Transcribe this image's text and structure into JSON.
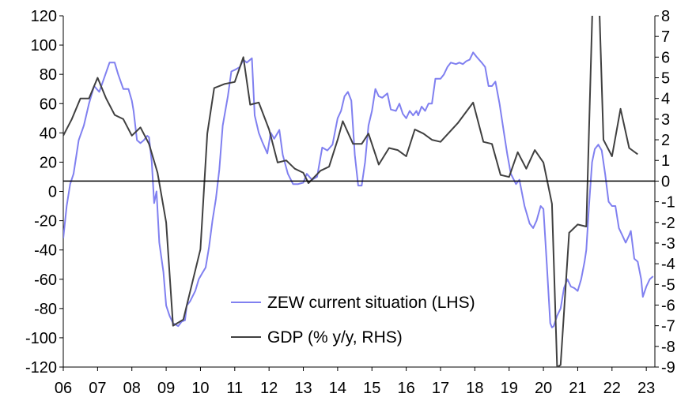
{
  "chart_data": {
    "type": "line",
    "title": "",
    "xlabel": "",
    "y_left": {
      "label": "",
      "range": [
        -120,
        120
      ],
      "ticks": [
        120,
        100,
        80,
        60,
        40,
        20,
        0,
        -20,
        -40,
        -60,
        -80,
        -100,
        -120
      ]
    },
    "y_right": {
      "label": "",
      "range": [
        -9,
        8
      ],
      "ticks": [
        8,
        7,
        6,
        5,
        4,
        3,
        2,
        1,
        0,
        -1,
        -2,
        -3,
        -4,
        -5,
        -6,
        -7,
        -8,
        -9
      ]
    },
    "x_range": [
      2006.0,
      2023.25
    ],
    "x_ticks": [
      {
        "value": 2006,
        "label": "06"
      },
      {
        "value": 2007,
        "label": "07"
      },
      {
        "value": 2008,
        "label": "08"
      },
      {
        "value": 2009,
        "label": "09"
      },
      {
        "value": 2010,
        "label": "10"
      },
      {
        "value": 2011,
        "label": "11"
      },
      {
        "value": 2012,
        "label": "12"
      },
      {
        "value": 2013,
        "label": "13"
      },
      {
        "value": 2014,
        "label": "14"
      },
      {
        "value": 2015,
        "label": "15"
      },
      {
        "value": 2016,
        "label": "16"
      },
      {
        "value": 2017,
        "label": "17"
      },
      {
        "value": 2018,
        "label": "18"
      },
      {
        "value": 2019,
        "label": "19"
      },
      {
        "value": 2020,
        "label": "20"
      },
      {
        "value": 2021,
        "label": "21"
      },
      {
        "value": 2022,
        "label": "22"
      },
      {
        "value": 2023,
        "label": "23"
      }
    ],
    "zero_line": "right-axis zero",
    "grid": false,
    "legend": {
      "placement": "bottom-center"
    },
    "series": [
      {
        "name": "ZEW current situation (LHS)",
        "axis": "left",
        "color": "#8080f0",
        "points": [
          [
            2006.0,
            -32
          ],
          [
            2006.1,
            -10
          ],
          [
            2006.2,
            5
          ],
          [
            2006.3,
            12
          ],
          [
            2006.45,
            35
          ],
          [
            2006.6,
            45
          ],
          [
            2006.75,
            60
          ],
          [
            2006.9,
            72
          ],
          [
            2007.05,
            68
          ],
          [
            2007.2,
            78
          ],
          [
            2007.35,
            88
          ],
          [
            2007.5,
            88
          ],
          [
            2007.6,
            80
          ],
          [
            2007.75,
            70
          ],
          [
            2007.9,
            70
          ],
          [
            2008.0,
            62
          ],
          [
            2008.05,
            55
          ],
          [
            2008.15,
            35
          ],
          [
            2008.25,
            33
          ],
          [
            2008.35,
            35
          ],
          [
            2008.45,
            38
          ],
          [
            2008.5,
            37
          ],
          [
            2008.58,
            20
          ],
          [
            2008.65,
            -8
          ],
          [
            2008.72,
            0
          ],
          [
            2008.8,
            -35
          ],
          [
            2008.92,
            -55
          ],
          [
            2009.0,
            -78
          ],
          [
            2009.1,
            -85
          ],
          [
            2009.2,
            -90
          ],
          [
            2009.35,
            -92
          ],
          [
            2009.45,
            -89
          ],
          [
            2009.55,
            -88
          ],
          [
            2009.6,
            -78
          ],
          [
            2009.7,
            -75
          ],
          [
            2009.85,
            -68
          ],
          [
            2009.95,
            -60
          ],
          [
            2010.05,
            -56
          ],
          [
            2010.15,
            -52
          ],
          [
            2010.25,
            -38
          ],
          [
            2010.35,
            -20
          ],
          [
            2010.45,
            -5
          ],
          [
            2010.55,
            15
          ],
          [
            2010.65,
            45
          ],
          [
            2010.8,
            65
          ],
          [
            2010.9,
            82
          ],
          [
            2011.0,
            83
          ],
          [
            2011.15,
            85
          ],
          [
            2011.25,
            90
          ],
          [
            2011.35,
            88
          ],
          [
            2011.5,
            91
          ],
          [
            2011.58,
            52
          ],
          [
            2011.7,
            40
          ],
          [
            2011.8,
            34
          ],
          [
            2011.95,
            26
          ],
          [
            2012.05,
            40
          ],
          [
            2012.15,
            36
          ],
          [
            2012.3,
            42
          ],
          [
            2012.4,
            25
          ],
          [
            2012.55,
            12
          ],
          [
            2012.7,
            5
          ],
          [
            2012.85,
            5
          ],
          [
            2013.0,
            6
          ],
          [
            2013.1,
            12
          ],
          [
            2013.25,
            8
          ],
          [
            2013.4,
            10
          ],
          [
            2013.55,
            30
          ],
          [
            2013.7,
            28
          ],
          [
            2013.85,
            32
          ],
          [
            2014.0,
            50
          ],
          [
            2014.1,
            55
          ],
          [
            2014.2,
            65
          ],
          [
            2014.3,
            68
          ],
          [
            2014.4,
            62
          ],
          [
            2014.5,
            25
          ],
          [
            2014.6,
            4
          ],
          [
            2014.7,
            4
          ],
          [
            2014.8,
            20
          ],
          [
            2014.9,
            45
          ],
          [
            2015.0,
            55
          ],
          [
            2015.1,
            70
          ],
          [
            2015.2,
            65
          ],
          [
            2015.3,
            64
          ],
          [
            2015.45,
            67
          ],
          [
            2015.55,
            56
          ],
          [
            2015.7,
            55
          ],
          [
            2015.8,
            60
          ],
          [
            2015.9,
            53
          ],
          [
            2016.0,
            50
          ],
          [
            2016.1,
            55
          ],
          [
            2016.2,
            52
          ],
          [
            2016.3,
            55
          ],
          [
            2016.35,
            52
          ],
          [
            2016.45,
            58
          ],
          [
            2016.55,
            55
          ],
          [
            2016.65,
            60
          ],
          [
            2016.75,
            60
          ],
          [
            2016.85,
            77
          ],
          [
            2017.0,
            77
          ],
          [
            2017.1,
            80
          ],
          [
            2017.2,
            85
          ],
          [
            2017.3,
            88
          ],
          [
            2017.45,
            87
          ],
          [
            2017.55,
            88
          ],
          [
            2017.65,
            87
          ],
          [
            2017.75,
            89
          ],
          [
            2017.85,
            90
          ],
          [
            2017.95,
            95
          ],
          [
            2018.05,
            92
          ],
          [
            2018.2,
            88
          ],
          [
            2018.3,
            85
          ],
          [
            2018.4,
            72
          ],
          [
            2018.5,
            72
          ],
          [
            2018.6,
            75
          ],
          [
            2018.72,
            60
          ],
          [
            2018.85,
            40
          ],
          [
            2018.95,
            25
          ],
          [
            2019.05,
            12
          ],
          [
            2019.2,
            5
          ],
          [
            2019.3,
            8
          ],
          [
            2019.45,
            -10
          ],
          [
            2019.6,
            -22
          ],
          [
            2019.7,
            -25
          ],
          [
            2019.8,
            -20
          ],
          [
            2019.92,
            -10
          ],
          [
            2020.0,
            -12
          ],
          [
            2020.1,
            -50
          ],
          [
            2020.2,
            -90
          ],
          [
            2020.25,
            -93
          ],
          [
            2020.3,
            -92
          ],
          [
            2020.4,
            -85
          ],
          [
            2020.5,
            -80
          ],
          [
            2020.6,
            -66
          ],
          [
            2020.7,
            -60
          ],
          [
            2020.8,
            -65
          ],
          [
            2020.9,
            -66
          ],
          [
            2021.0,
            -68
          ],
          [
            2021.1,
            -60
          ],
          [
            2021.2,
            -48
          ],
          [
            2021.25,
            -40
          ],
          [
            2021.33,
            -10
          ],
          [
            2021.42,
            20
          ],
          [
            2021.5,
            29
          ],
          [
            2021.6,
            32
          ],
          [
            2021.7,
            28
          ],
          [
            2021.8,
            12
          ],
          [
            2021.9,
            -7
          ],
          [
            2022.0,
            -10
          ],
          [
            2022.1,
            -10
          ],
          [
            2022.2,
            -25
          ],
          [
            2022.3,
            -30
          ],
          [
            2022.4,
            -35
          ],
          [
            2022.5,
            -30
          ],
          [
            2022.55,
            -27
          ],
          [
            2022.65,
            -46
          ],
          [
            2022.75,
            -48
          ],
          [
            2022.85,
            -60
          ],
          [
            2022.9,
            -72
          ],
          [
            2023.0,
            -65
          ],
          [
            2023.1,
            -60
          ],
          [
            2023.2,
            -58
          ]
        ]
      },
      {
        "name": "GDP (% y/y, RHS)",
        "axis": "right",
        "color": "#404040",
        "points": [
          [
            2006.0,
            2.2
          ],
          [
            2006.25,
            3.0
          ],
          [
            2006.5,
            4.0
          ],
          [
            2006.75,
            4.0
          ],
          [
            2007.0,
            5.0
          ],
          [
            2007.25,
            4.0
          ],
          [
            2007.5,
            3.2
          ],
          [
            2007.75,
            3.0
          ],
          [
            2008.0,
            2.2
          ],
          [
            2008.25,
            2.6
          ],
          [
            2008.5,
            1.8
          ],
          [
            2008.75,
            0.4
          ],
          [
            2009.0,
            -2.0
          ],
          [
            2009.2,
            -7.0
          ],
          [
            2009.5,
            -6.7
          ],
          [
            2009.75,
            -5.0
          ],
          [
            2010.0,
            -3.3
          ],
          [
            2010.2,
            2.3
          ],
          [
            2010.4,
            4.5
          ],
          [
            2010.7,
            4.7
          ],
          [
            2011.0,
            4.8
          ],
          [
            2011.25,
            6.0
          ],
          [
            2011.45,
            3.7
          ],
          [
            2011.7,
            3.8
          ],
          [
            2012.0,
            2.5
          ],
          [
            2012.25,
            0.9
          ],
          [
            2012.5,
            1.0
          ],
          [
            2012.75,
            0.6
          ],
          [
            2013.0,
            0.4
          ],
          [
            2013.15,
            -0.1
          ],
          [
            2013.5,
            0.5
          ],
          [
            2013.75,
            0.7
          ],
          [
            2014.0,
            2.0
          ],
          [
            2014.15,
            2.9
          ],
          [
            2014.45,
            1.8
          ],
          [
            2014.7,
            1.8
          ],
          [
            2014.9,
            2.3
          ],
          [
            2015.2,
            0.8
          ],
          [
            2015.5,
            1.6
          ],
          [
            2015.75,
            1.5
          ],
          [
            2016.0,
            1.2
          ],
          [
            2016.25,
            2.5
          ],
          [
            2016.5,
            2.3
          ],
          [
            2016.75,
            2.0
          ],
          [
            2017.0,
            1.9
          ],
          [
            2017.5,
            2.8
          ],
          [
            2017.95,
            3.8
          ],
          [
            2018.25,
            1.9
          ],
          [
            2018.5,
            1.8
          ],
          [
            2018.75,
            0.3
          ],
          [
            2019.0,
            0.2
          ],
          [
            2019.25,
            1.4
          ],
          [
            2019.5,
            0.6
          ],
          [
            2019.75,
            1.5
          ],
          [
            2020.0,
            0.9
          ],
          [
            2020.25,
            -1.1
          ],
          [
            2020.4,
            -9.0
          ],
          [
            2020.5,
            -8.9
          ],
          [
            2020.75,
            -2.5
          ],
          [
            2021.0,
            -2.1
          ],
          [
            2021.25,
            -2.2
          ],
          [
            2021.45,
            9.5
          ],
          [
            2021.6,
            10.0
          ],
          [
            2021.75,
            2.0
          ],
          [
            2022.0,
            1.2
          ],
          [
            2022.25,
            3.5
          ],
          [
            2022.5,
            1.6
          ],
          [
            2022.75,
            1.3
          ]
        ]
      }
    ]
  }
}
